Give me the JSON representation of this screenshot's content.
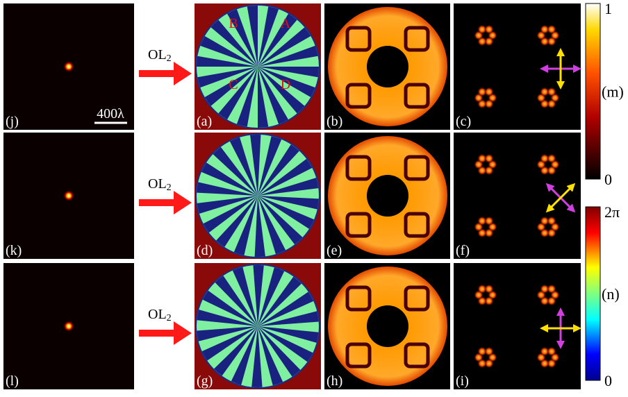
{
  "rows": [
    {
      "input_label": "(j)",
      "lens": {
        "text": "OL",
        "subscript": "2"
      },
      "panels": [
        "(a)",
        "(b)",
        "(c)"
      ]
    },
    {
      "input_label": "(k)",
      "lens": {
        "text": "OL",
        "subscript": "2"
      },
      "panels": [
        "(d)",
        "(e)",
        "(f)"
      ]
    },
    {
      "input_label": "(l)",
      "lens": {
        "text": "OL",
        "subscript": "2"
      },
      "panels": [
        "(g)",
        "(h)",
        "(i)"
      ]
    }
  ],
  "scale_bar": "400λ",
  "quadrant_labels": [
    "B",
    "A",
    "C",
    "D"
  ],
  "colorbars": [
    {
      "max": "1",
      "name": "(m)",
      "min": "0"
    },
    {
      "max": "2π",
      "name": "(n)",
      "min": "0"
    }
  ]
}
